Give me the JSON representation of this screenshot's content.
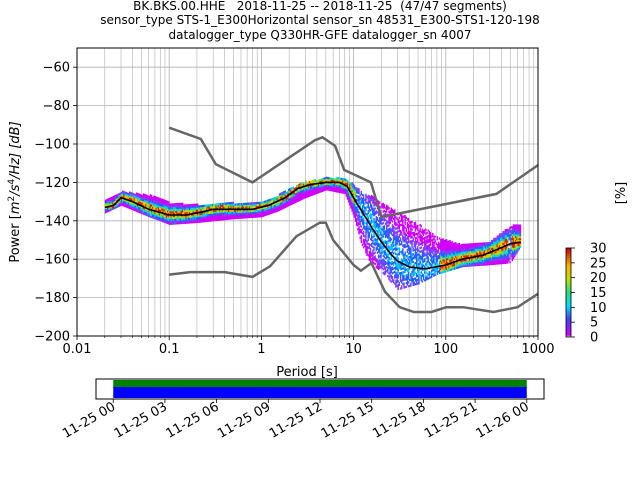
{
  "title_lines": [
    "BK.BKS.00.HHE   2018-11-25 -- 2018-11-25  (47/47 segments)",
    "sensor_type STS-1_E300Horizontal sensor_sn 48531_E300-STS1-120-198",
    "datalogger_type Q330HR-GFE datalogger_sn 4007"
  ],
  "chart_data": {
    "type": "heatmap",
    "xlabel": "Period [s]",
    "ylabel": "Power [m²/s⁴/Hz] [dB]",
    "ylabel_parts": {
      "pre": "Power [",
      "m": "m",
      "exp1": "2",
      "mid": "/s",
      "exp2": "4",
      "post": "/Hz] [dB]"
    },
    "x_scale": "log",
    "xlim": [
      0.01,
      1000
    ],
    "ylim": [
      -200,
      -50
    ],
    "x_ticks": [
      {
        "v": 0.01,
        "label": "0.01"
      },
      {
        "v": 0.1,
        "label": "0.1"
      },
      {
        "v": 1,
        "label": "1"
      },
      {
        "v": 10,
        "label": "10"
      },
      {
        "v": 100,
        "label": "100"
      },
      {
        "v": 1000,
        "label": "1000"
      }
    ],
    "y_ticks": [
      {
        "v": -60,
        "label": "−60"
      },
      {
        "v": -80,
        "label": "−80"
      },
      {
        "v": -100,
        "label": "−100"
      },
      {
        "v": -120,
        "label": "−120"
      },
      {
        "v": -140,
        "label": "−140"
      },
      {
        "v": -160,
        "label": "−160"
      },
      {
        "v": -180,
        "label": "−180"
      },
      {
        "v": -200,
        "label": "−200"
      }
    ],
    "grid": true,
    "noise_model_high": [
      [
        0.1,
        -91.5
      ],
      [
        0.22,
        -97.4
      ],
      [
        0.32,
        -110.5
      ],
      [
        0.8,
        -120
      ],
      [
        3.8,
        -98
      ],
      [
        4.6,
        -96.5
      ],
      [
        6.3,
        -101
      ],
      [
        7.9,
        -113.5
      ],
      [
        15.4,
        -120
      ],
      [
        20,
        -138
      ],
      [
        354,
        -126
      ],
      [
        1000,
        -111
      ]
    ],
    "noise_model_low": [
      [
        0.1,
        -168
      ],
      [
        0.17,
        -166.7
      ],
      [
        0.4,
        -166.7
      ],
      [
        0.8,
        -169.2
      ],
      [
        1.24,
        -163.7
      ],
      [
        2.4,
        -148
      ],
      [
        4.3,
        -141
      ],
      [
        5,
        -141
      ],
      [
        6,
        -150
      ],
      [
        10,
        -163
      ],
      [
        12,
        -166
      ],
      [
        15.6,
        -162
      ],
      [
        21.9,
        -177
      ],
      [
        31.6,
        -185
      ],
      [
        45,
        -187.5
      ],
      [
        70,
        -187.5
      ],
      [
        101,
        -185
      ],
      [
        154,
        -185
      ],
      [
        328,
        -187.5
      ],
      [
        600,
        -185
      ],
      [
        1000,
        -178
      ]
    ],
    "median_curve": [
      [
        0.02,
        -133
      ],
      [
        0.025,
        -132
      ],
      [
        0.03,
        -128
      ],
      [
        0.04,
        -130
      ],
      [
        0.06,
        -134
      ],
      [
        0.1,
        -137
      ],
      [
        0.15,
        -137
      ],
      [
        0.2,
        -136
      ],
      [
        0.3,
        -134
      ],
      [
        0.5,
        -134
      ],
      [
        0.8,
        -134
      ],
      [
        1.2,
        -132
      ],
      [
        1.8,
        -128
      ],
      [
        2.5,
        -123
      ],
      [
        3.5,
        -121
      ],
      [
        5,
        -120
      ],
      [
        7,
        -120
      ],
      [
        8.5,
        -122
      ],
      [
        10,
        -128
      ],
      [
        13,
        -137
      ],
      [
        16,
        -144
      ],
      [
        20,
        -151
      ],
      [
        25,
        -157
      ],
      [
        30,
        -161
      ],
      [
        40,
        -164
      ],
      [
        60,
        -165
      ],
      [
        100,
        -163
      ],
      [
        150,
        -160
      ],
      [
        250,
        -158
      ],
      [
        400,
        -154
      ],
      [
        500,
        -152
      ],
      [
        650,
        -151
      ]
    ],
    "histogram_band": [
      [
        0.02,
        -130,
        -136
      ],
      [
        0.03,
        -125,
        -132
      ],
      [
        0.06,
        -127,
        -138
      ],
      [
        0.1,
        -131,
        -142
      ],
      [
        0.2,
        -132,
        -141
      ],
      [
        0.5,
        -131,
        -139
      ],
      [
        1,
        -131,
        -138
      ],
      [
        1.5,
        -127,
        -135
      ],
      [
        2,
        -124,
        -132
      ],
      [
        3,
        -120,
        -128
      ],
      [
        5,
        -118,
        -124
      ],
      [
        8,
        -118,
        -126
      ],
      [
        10,
        -122,
        -138
      ],
      [
        12,
        -125,
        -152
      ],
      [
        15,
        -127,
        -162
      ],
      [
        20,
        -131,
        -167
      ],
      [
        30,
        -136,
        -176
      ],
      [
        50,
        -142,
        -173
      ],
      [
        80,
        -149,
        -168
      ],
      [
        150,
        -153,
        -164
      ],
      [
        300,
        -151,
        -163
      ],
      [
        500,
        -143,
        -162
      ],
      [
        650,
        -142,
        -153
      ]
    ],
    "colorbar": {
      "label": "[%]",
      "min": 0,
      "max": 30,
      "ticks": [
        {
          "v": 0,
          "label": "0"
        },
        {
          "v": 5,
          "label": "5"
        },
        {
          "v": 10,
          "label": "10"
        },
        {
          "v": 15,
          "label": "15"
        },
        {
          "v": 20,
          "label": "20"
        },
        {
          "v": 25,
          "label": "25"
        },
        {
          "v": 30,
          "label": "30"
        }
      ]
    },
    "coverage": {
      "tick_labels": [
        "11-25 00",
        "11-25 03",
        "11-25 06",
        "11-25 09",
        "11-25 12",
        "11-25 15",
        "11-25 18",
        "11-25 21",
        "11-26 00"
      ],
      "range_hours": [
        -1,
        25
      ],
      "segment_hours": [
        0,
        24
      ]
    }
  },
  "colors": {
    "noise_model": "#666666",
    "median": "#000000",
    "grid": "#b0b0b0",
    "coverage_top": "#008000",
    "coverage_bottom": "#0000ff"
  }
}
